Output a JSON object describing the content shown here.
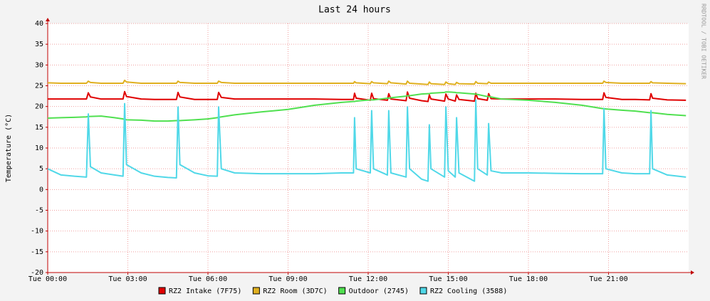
{
  "chart_data": {
    "type": "line",
    "title": "Last 24 hours",
    "y_label": "Temperature (°C)",
    "watermark": "RRDTOOL / TOBI OETIKER",
    "xlim": [
      0,
      24
    ],
    "ylim": [
      -20,
      40
    ],
    "yticks": [
      -20,
      -15,
      -10,
      -5,
      0,
      5,
      10,
      15,
      20,
      25,
      30,
      35,
      40
    ],
    "xticks": [
      {
        "value": 0,
        "label": "Tue 00:00"
      },
      {
        "value": 3,
        "label": "Tue 03:00"
      },
      {
        "value": 6,
        "label": "Tue 06:00"
      },
      {
        "value": 9,
        "label": "Tue 09:00"
      },
      {
        "value": 12,
        "label": "Tue 12:00"
      },
      {
        "value": 15,
        "label": "Tue 15:00"
      },
      {
        "value": 18,
        "label": "Tue 18:00"
      },
      {
        "value": 21,
        "label": "Tue 21:00"
      }
    ],
    "grid": true,
    "x": [
      0,
      0.5,
      1,
      1.45,
      1.52,
      1.6,
      2.0,
      2.5,
      2.82,
      2.88,
      2.95,
      3.5,
      4.0,
      4.5,
      4.82,
      4.88,
      4.95,
      5.5,
      6.0,
      6.35,
      6.4,
      6.5,
      7,
      8,
      9,
      10,
      11,
      11.45,
      11.49,
      11.55,
      12.08,
      12.13,
      12.2,
      12.72,
      12.77,
      12.85,
      13.42,
      13.47,
      13.55,
      14.0,
      14.24,
      14.29,
      14.35,
      14.86,
      14.91,
      15.0,
      15.26,
      15.31,
      15.4,
      15.98,
      16.03,
      16.1,
      16.46,
      16.51,
      16.6,
      17,
      18,
      19,
      20,
      20.78,
      20.83,
      20.9,
      21.5,
      22,
      22.54,
      22.59,
      22.65,
      23.2,
      23.9
    ],
    "series": [
      {
        "name": "RZ2 Intake (7F75)",
        "color": "#e00000",
        "values": [
          21.8,
          21.8,
          21.8,
          21.8,
          23.3,
          22.3,
          21.8,
          21.8,
          21.8,
          23.6,
          22.4,
          21.8,
          21.7,
          21.7,
          21.7,
          23.4,
          22.3,
          21.7,
          21.7,
          21.7,
          23.4,
          22.2,
          21.8,
          21.8,
          21.8,
          21.8,
          21.7,
          21.7,
          23.2,
          22.0,
          21.5,
          23.2,
          21.9,
          21.5,
          23.1,
          21.8,
          21.4,
          23.5,
          22.0,
          21.4,
          21.2,
          22.8,
          21.8,
          21.3,
          23.0,
          21.8,
          21.3,
          22.8,
          21.7,
          21.3,
          23.2,
          21.9,
          21.5,
          23.1,
          21.9,
          21.8,
          21.8,
          21.8,
          21.7,
          21.7,
          23.3,
          22.2,
          21.7,
          21.7,
          21.6,
          23.1,
          22.0,
          21.6,
          21.5
        ]
      },
      {
        "name": "RZ2 Room (3D7C)",
        "color": "#e0b020",
        "values": [
          25.7,
          25.6,
          25.6,
          25.6,
          26.1,
          25.8,
          25.6,
          25.6,
          25.6,
          26.3,
          25.9,
          25.6,
          25.6,
          25.6,
          25.6,
          26.1,
          25.8,
          25.6,
          25.6,
          25.6,
          26.1,
          25.8,
          25.6,
          25.6,
          25.6,
          25.6,
          25.6,
          25.6,
          26.0,
          25.7,
          25.5,
          26.0,
          25.7,
          25.5,
          26.1,
          25.7,
          25.4,
          26.1,
          25.6,
          25.4,
          25.3,
          25.9,
          25.5,
          25.3,
          25.9,
          25.5,
          25.3,
          25.8,
          25.5,
          25.4,
          26.0,
          25.6,
          25.5,
          25.9,
          25.6,
          25.6,
          25.6,
          25.6,
          25.6,
          25.6,
          26.1,
          25.8,
          25.6,
          25.6,
          25.6,
          26.0,
          25.7,
          25.6,
          25.5
        ]
      },
      {
        "name": "Outdoor (2745)",
        "color": "#50e050",
        "values": [
          17.2,
          17.3,
          17.4,
          17.5,
          17.6,
          17.6,
          17.7,
          17.3,
          17.0,
          16.9,
          16.8,
          16.7,
          16.5,
          16.5,
          16.6,
          16.6,
          16.6,
          16.8,
          17.0,
          17.3,
          17.4,
          17.5,
          18.0,
          18.7,
          19.3,
          20.3,
          21.0,
          21.2,
          21.2,
          21.3,
          21.6,
          21.6,
          21.6,
          22.0,
          22.0,
          22.1,
          22.5,
          22.6,
          22.6,
          23.0,
          23.1,
          23.1,
          23.2,
          23.4,
          23.5,
          23.5,
          23.4,
          23.3,
          23.3,
          23.0,
          23.0,
          22.9,
          22.4,
          22.4,
          22.3,
          21.8,
          21.5,
          21.0,
          20.3,
          19.5,
          19.5,
          19.4,
          19.1,
          18.9,
          18.5,
          18.5,
          18.5,
          18.1,
          17.8
        ]
      },
      {
        "name": "RZ2 Cooling (3588)",
        "color": "#50d8e8",
        "values": [
          5,
          3.5,
          3.2,
          3,
          18.2,
          5.5,
          4,
          3.5,
          3.2,
          20.7,
          6,
          4,
          3.2,
          2.9,
          2.8,
          19.9,
          6,
          4,
          3.3,
          3.2,
          19.9,
          5,
          4,
          3.8,
          3.8,
          3.8,
          4,
          4,
          17.3,
          5,
          4,
          19,
          5,
          3.5,
          19,
          4,
          3,
          19.9,
          5,
          2.5,
          2,
          15.6,
          5,
          3,
          19.9,
          4.5,
          3,
          17.3,
          4,
          2,
          21.6,
          5,
          3.5,
          15.9,
          4.5,
          4,
          4,
          3.9,
          3.8,
          3.8,
          19.5,
          5,
          4,
          3.8,
          3.8,
          19,
          5,
          3.5,
          3
        ]
      }
    ]
  }
}
